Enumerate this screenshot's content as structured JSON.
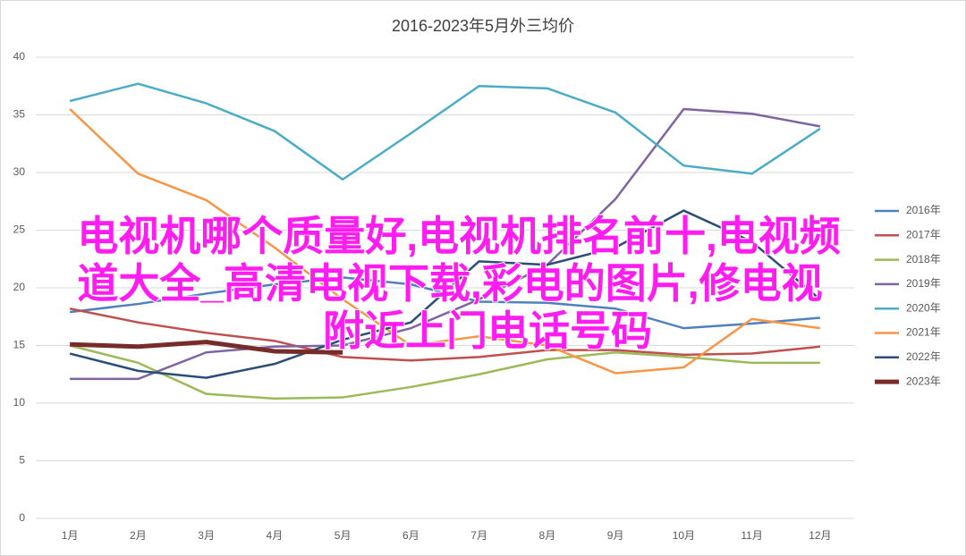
{
  "chart_data": {
    "type": "line",
    "title": "2016-2023年5月外三均价",
    "categories": [
      "1月",
      "2月",
      "3月",
      "4月",
      "5月",
      "6月",
      "7月",
      "8月",
      "9月",
      "10月",
      "11月",
      "12月"
    ],
    "ylim": [
      0,
      40
    ],
    "yticks": [
      0,
      5,
      10,
      15,
      20,
      25,
      30,
      35,
      40
    ],
    "grid": true,
    "legend": "right",
    "series": [
      {
        "name": "2016年",
        "color": "#4f81bd",
        "values": [
          17.9,
          18.6,
          19.5,
          20.3,
          20.9,
          20.3,
          18.8,
          18.7,
          18.2,
          16.5,
          16.9,
          17.4
        ]
      },
      {
        "name": "2017年",
        "color": "#c0504d",
        "values": [
          18.2,
          17.0,
          16.1,
          15.4,
          14.0,
          13.7,
          14.0,
          14.6,
          14.6,
          14.2,
          14.3,
          14.9
        ]
      },
      {
        "name": "2018年",
        "color": "#9bbb59",
        "values": [
          15.0,
          13.5,
          10.8,
          10.4,
          10.5,
          11.4,
          12.5,
          13.8,
          14.4,
          14.0,
          13.5,
          13.5
        ]
      },
      {
        "name": "2019年",
        "color": "#8064a2",
        "values": [
          12.1,
          12.1,
          14.4,
          14.9,
          15.0,
          16.5,
          19.0,
          22.0,
          27.7,
          35.5,
          35.1,
          34.0
        ]
      },
      {
        "name": "2020年",
        "color": "#4bacc6",
        "values": [
          36.2,
          37.7,
          36.0,
          33.6,
          29.4,
          33.4,
          37.5,
          37.3,
          35.2,
          30.6,
          29.9,
          33.8
        ]
      },
      {
        "name": "2021年",
        "color": "#f79646",
        "values": [
          35.5,
          29.9,
          27.6,
          23.5,
          19.0,
          15.0,
          15.8,
          15.0,
          12.6,
          13.1,
          17.3,
          16.5
        ]
      },
      {
        "name": "2022年",
        "color": "#2c4d75",
        "values": [
          14.3,
          12.8,
          12.2,
          13.4,
          15.5,
          17.0,
          22.3,
          22.0,
          23.5,
          26.7,
          24.0,
          19.0
        ]
      },
      {
        "name": "2023年",
        "color": "#772c2a",
        "values": [
          15.1,
          14.9,
          15.3,
          14.5,
          14.4,
          null,
          null,
          null,
          null,
          null,
          null,
          null
        ]
      }
    ],
    "overlay_text": [
      "电视机哪个质量好,电视机排名前十,电视频",
      "道大全_高清电视下载,彩电的图片,修电视",
      "附近上门电话号码"
    ]
  }
}
